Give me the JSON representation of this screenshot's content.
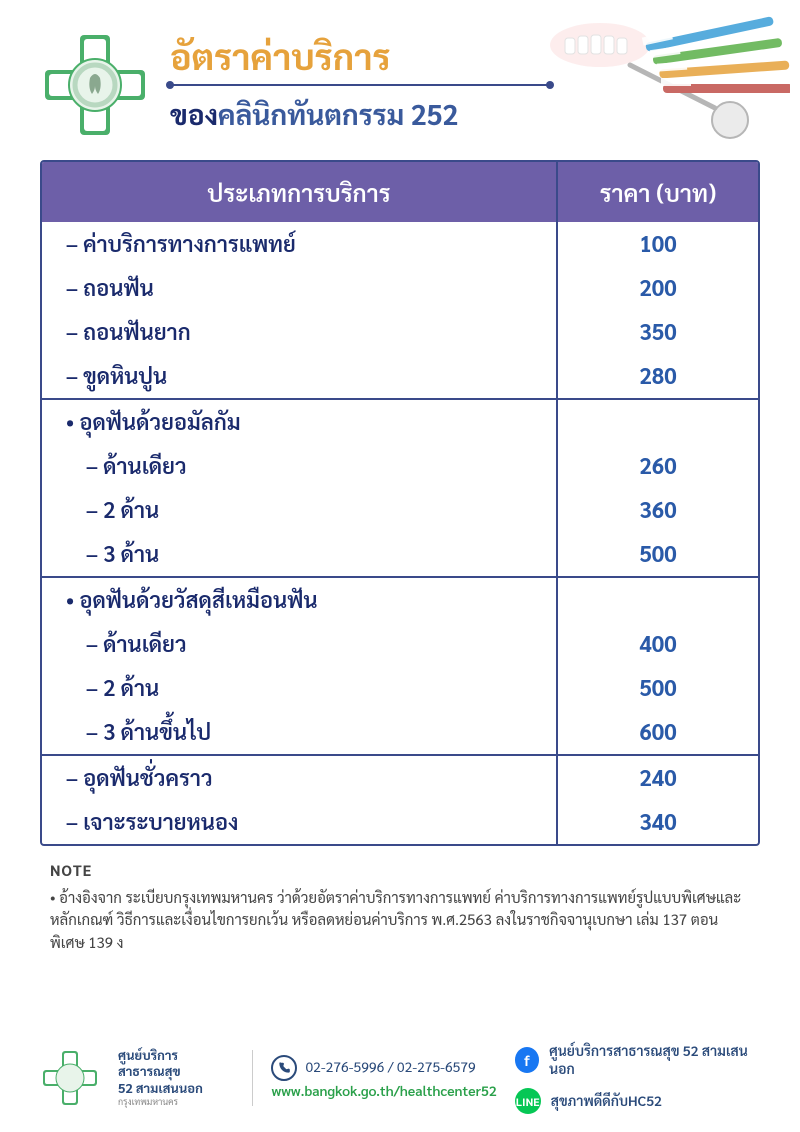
{
  "header": {
    "title": "อัตราค่าบริการ",
    "subtitle_prefix": "ของ",
    "subtitle_name": "คลินิกทันตกรรม 252",
    "title_color": "#e6a23c",
    "subtitle_color": "#1a2a6c",
    "line_color": "#3a4a8a"
  },
  "table": {
    "header_bg": "#6d5fa8",
    "header_fg": "#ffffff",
    "border_color": "#3a4a8a",
    "service_header": "ประเภทการบริการ",
    "price_header": "ราคา (บาท)",
    "service_color": "#1a2a6c",
    "price_color": "#2a5aa8",
    "groups": [
      {
        "rows": [
          {
            "label": "ค่าบริการทางการแพทย์",
            "price": "100",
            "style": "dash"
          },
          {
            "label": "ถอนฟัน",
            "price": "200",
            "style": "dash"
          },
          {
            "label": "ถอนฟันยาก",
            "price": "350",
            "style": "dash"
          },
          {
            "label": "ขูดหินปูน",
            "price": "280",
            "style": "dash"
          }
        ]
      },
      {
        "heading": "อุดฟันด้วยอมัลกัม",
        "rows": [
          {
            "label": "ด้านเดียว",
            "price": "260",
            "style": "dash",
            "sub": true
          },
          {
            "label": "2 ด้าน",
            "price": "360",
            "style": "dash",
            "sub": true
          },
          {
            "label": "3 ด้าน",
            "price": "500",
            "style": "dash",
            "sub": true
          }
        ]
      },
      {
        "heading": "อุดฟันด้วยวัสดุสีเหมือนฟัน",
        "rows": [
          {
            "label": "ด้านเดียว",
            "price": "400",
            "style": "dash",
            "sub": true
          },
          {
            "label": "2 ด้าน",
            "price": "500",
            "style": "dash",
            "sub": true
          },
          {
            "label": "3 ด้านขึ้นไป",
            "price": "600",
            "style": "dash",
            "sub": true
          }
        ]
      },
      {
        "rows": [
          {
            "label": "อุดฟันชั่วคราว",
            "price": "240",
            "style": "dash"
          },
          {
            "label": "เจาะระบายหนอง",
            "price": "340",
            "style": "dash"
          }
        ]
      }
    ]
  },
  "note": {
    "title": "NOTE",
    "text": "อ้างอิงจาก ระเบียบกรุงเทพมหานคร ว่าด้วยอัตราค่าบริการทางการแพทย์ ค่าบริการทางการแพทย์รูปแบบพิเศษและหลักเกณฑ์ วิธีการและเงื่อนไขการยกเว้น หรือลดหย่อนค่าบริการ พ.ศ.2563 ลงในราชกิจจานุเบกษา เล่ม 137 ตอนพิเศษ 139 ง"
  },
  "footer": {
    "org_line1": "ศูนย์บริการสาธารณสุข",
    "org_line2": "52 สามเสนนอก",
    "org_line3": "กรุงเทพมหานคร",
    "phone": "02-276-5996 / 02-275-6579",
    "website": "www.bangkok.go.th/healthcenter52",
    "facebook": "ศูนย์บริการสาธารณสุข 52 สามเสนนอก",
    "line": "สุขภาพดีดีกับHC52",
    "colors": {
      "fb_bg": "#1877f2",
      "line_bg": "#06c755",
      "web_color": "#2aa04a",
      "text_color": "#2a4a7a"
    }
  },
  "decoration": {
    "toothbrush_colors": [
      "#3a9ed8",
      "#4aaee0",
      "#5ab048",
      "#e6a23c",
      "#c0504a"
    ]
  }
}
